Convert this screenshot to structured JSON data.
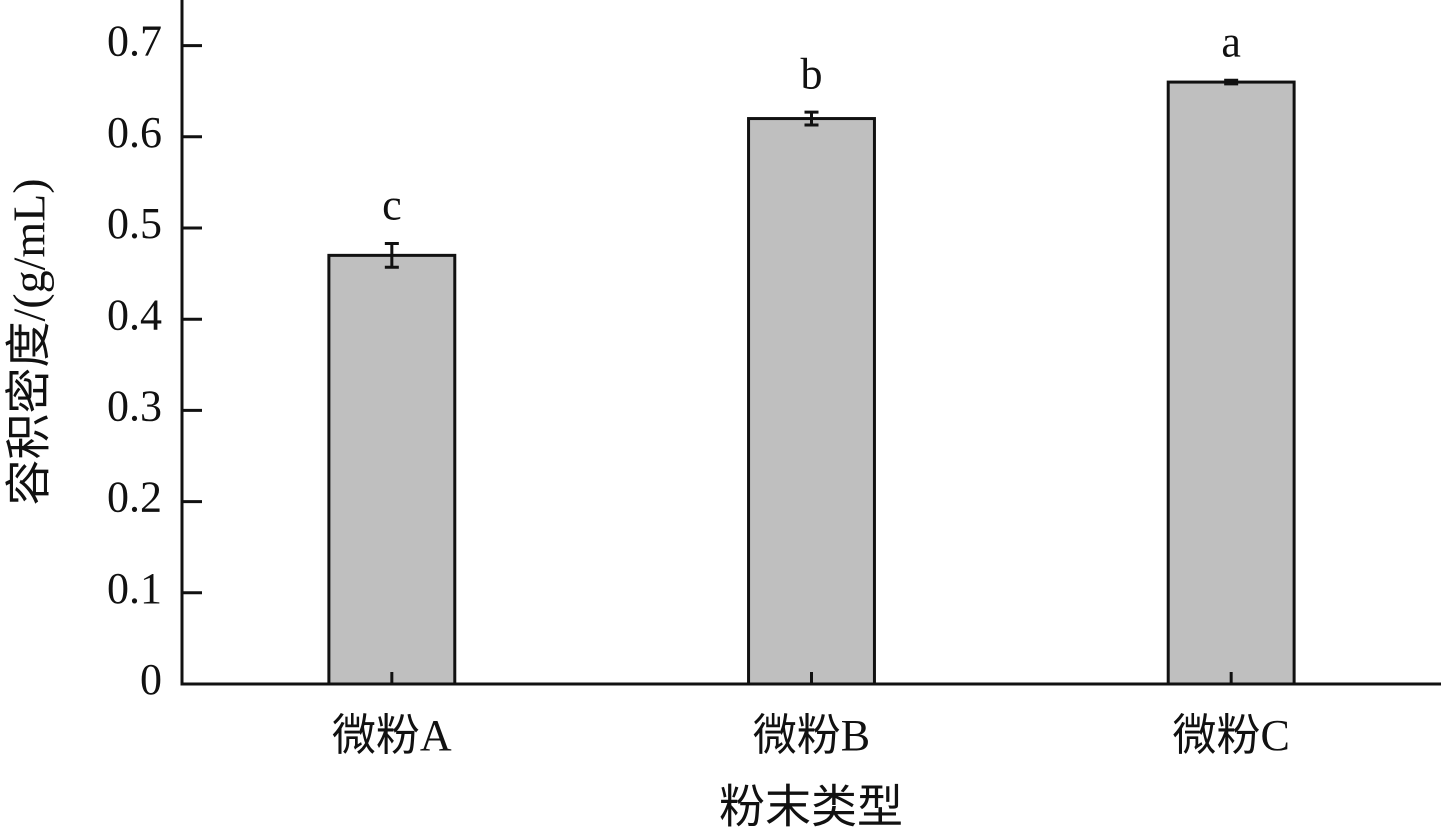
{
  "chart_data": {
    "type": "bar",
    "x_label": "粉末类型",
    "y_label": "容积密度/(g/mL)",
    "categories": [
      "微粉A",
      "微粉B",
      "微粉C"
    ],
    "values": [
      0.47,
      0.62,
      0.66
    ],
    "errors": [
      0.013,
      0.007,
      0.002
    ],
    "significance_labels": [
      "c",
      "b",
      "a"
    ],
    "color": "#bfbfbf",
    "ylim": [
      0,
      0.75
    ],
    "yticks": [
      0,
      0.1,
      0.2,
      0.3,
      0.4,
      0.5,
      0.6,
      0.7
    ]
  }
}
